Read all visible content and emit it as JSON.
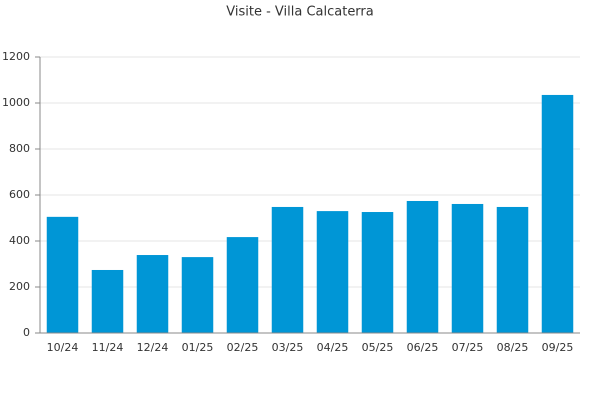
{
  "chart_data": {
    "type": "bar",
    "title": "Visite - Villa Calcaterra",
    "categories": [
      "10/24",
      "11/24",
      "12/24",
      "01/25",
      "02/25",
      "03/25",
      "04/25",
      "05/25",
      "06/25",
      "07/25",
      "08/25",
      "09/25"
    ],
    "values": [
      505,
      274,
      339,
      330,
      417,
      548,
      530,
      526,
      574,
      561,
      548,
      1035
    ],
    "color": "#0096d6",
    "ylim": [
      0,
      1200
    ],
    "yticks": [
      0,
      200,
      400,
      600,
      800,
      1000,
      1200
    ],
    "grid": true
  }
}
